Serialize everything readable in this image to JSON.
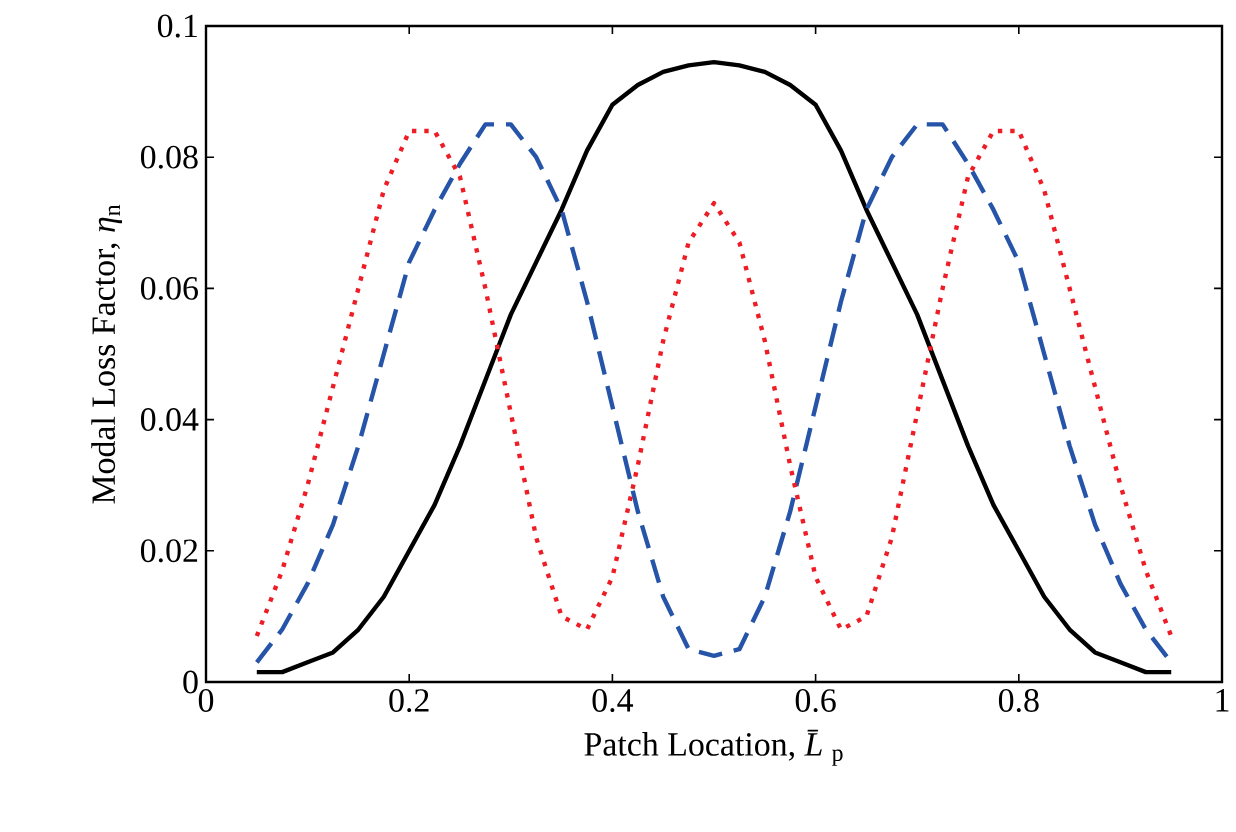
{
  "chart_data": {
    "type": "line",
    "xlabel": "Patch Location, *L̄*$_{p}$",
    "ylabel": "Modal Loss Factor, *η*$_{n}$",
    "x": [
      0.05,
      0.075,
      0.1,
      0.125,
      0.15,
      0.175,
      0.2,
      0.225,
      0.25,
      0.275,
      0.3,
      0.325,
      0.35,
      0.375,
      0.4,
      0.425,
      0.45,
      0.475,
      0.5,
      0.525,
      0.55,
      0.575,
      0.6,
      0.625,
      0.65,
      0.675,
      0.7,
      0.725,
      0.75,
      0.775,
      0.8,
      0.825,
      0.85,
      0.875,
      0.9,
      0.925,
      0.95
    ],
    "series": [
      {
        "color": "#000000",
        "line_style": "solid",
        "values": [
          0.0015,
          0.0015,
          0.003,
          0.0045,
          0.008,
          0.013,
          0.02,
          0.027,
          0.036,
          0.046,
          0.056,
          0.064,
          0.072,
          0.081,
          0.088,
          0.091,
          0.093,
          0.094,
          0.0945,
          0.094,
          0.093,
          0.091,
          0.088,
          0.081,
          0.072,
          0.064,
          0.056,
          0.046,
          0.036,
          0.027,
          0.02,
          0.013,
          0.008,
          0.0045,
          0.003,
          0.0015,
          0.0015
        ]
      },
      {
        "color": "#2554a8",
        "line_style": "dashed",
        "values": [
          0.003,
          0.008,
          0.015,
          0.024,
          0.036,
          0.05,
          0.064,
          0.072,
          0.079,
          0.085,
          0.085,
          0.08,
          0.072,
          0.058,
          0.042,
          0.026,
          0.013,
          0.005,
          0.004,
          0.005,
          0.013,
          0.026,
          0.042,
          0.058,
          0.072,
          0.08,
          0.085,
          0.085,
          0.079,
          0.072,
          0.064,
          0.05,
          0.036,
          0.024,
          0.015,
          0.008,
          0.003
        ]
      },
      {
        "color": "#ee1c25",
        "line_style": "dotted",
        "values": [
          0.007,
          0.017,
          0.03,
          0.045,
          0.06,
          0.075,
          0.084,
          0.084,
          0.077,
          0.06,
          0.041,
          0.022,
          0.01,
          0.008,
          0.016,
          0.033,
          0.052,
          0.067,
          0.073,
          0.067,
          0.052,
          0.033,
          0.016,
          0.008,
          0.01,
          0.022,
          0.041,
          0.06,
          0.077,
          0.084,
          0.084,
          0.075,
          0.06,
          0.045,
          0.03,
          0.017,
          0.007
        ]
      }
    ],
    "xlim": [
      0,
      1
    ],
    "ylim": [
      0,
      0.1
    ],
    "xticks": [
      0,
      0.2,
      0.4,
      0.6,
      0.8,
      1
    ],
    "yticks": [
      0,
      0.02,
      0.04,
      0.06,
      0.08,
      0.1
    ],
    "marker": "none"
  }
}
